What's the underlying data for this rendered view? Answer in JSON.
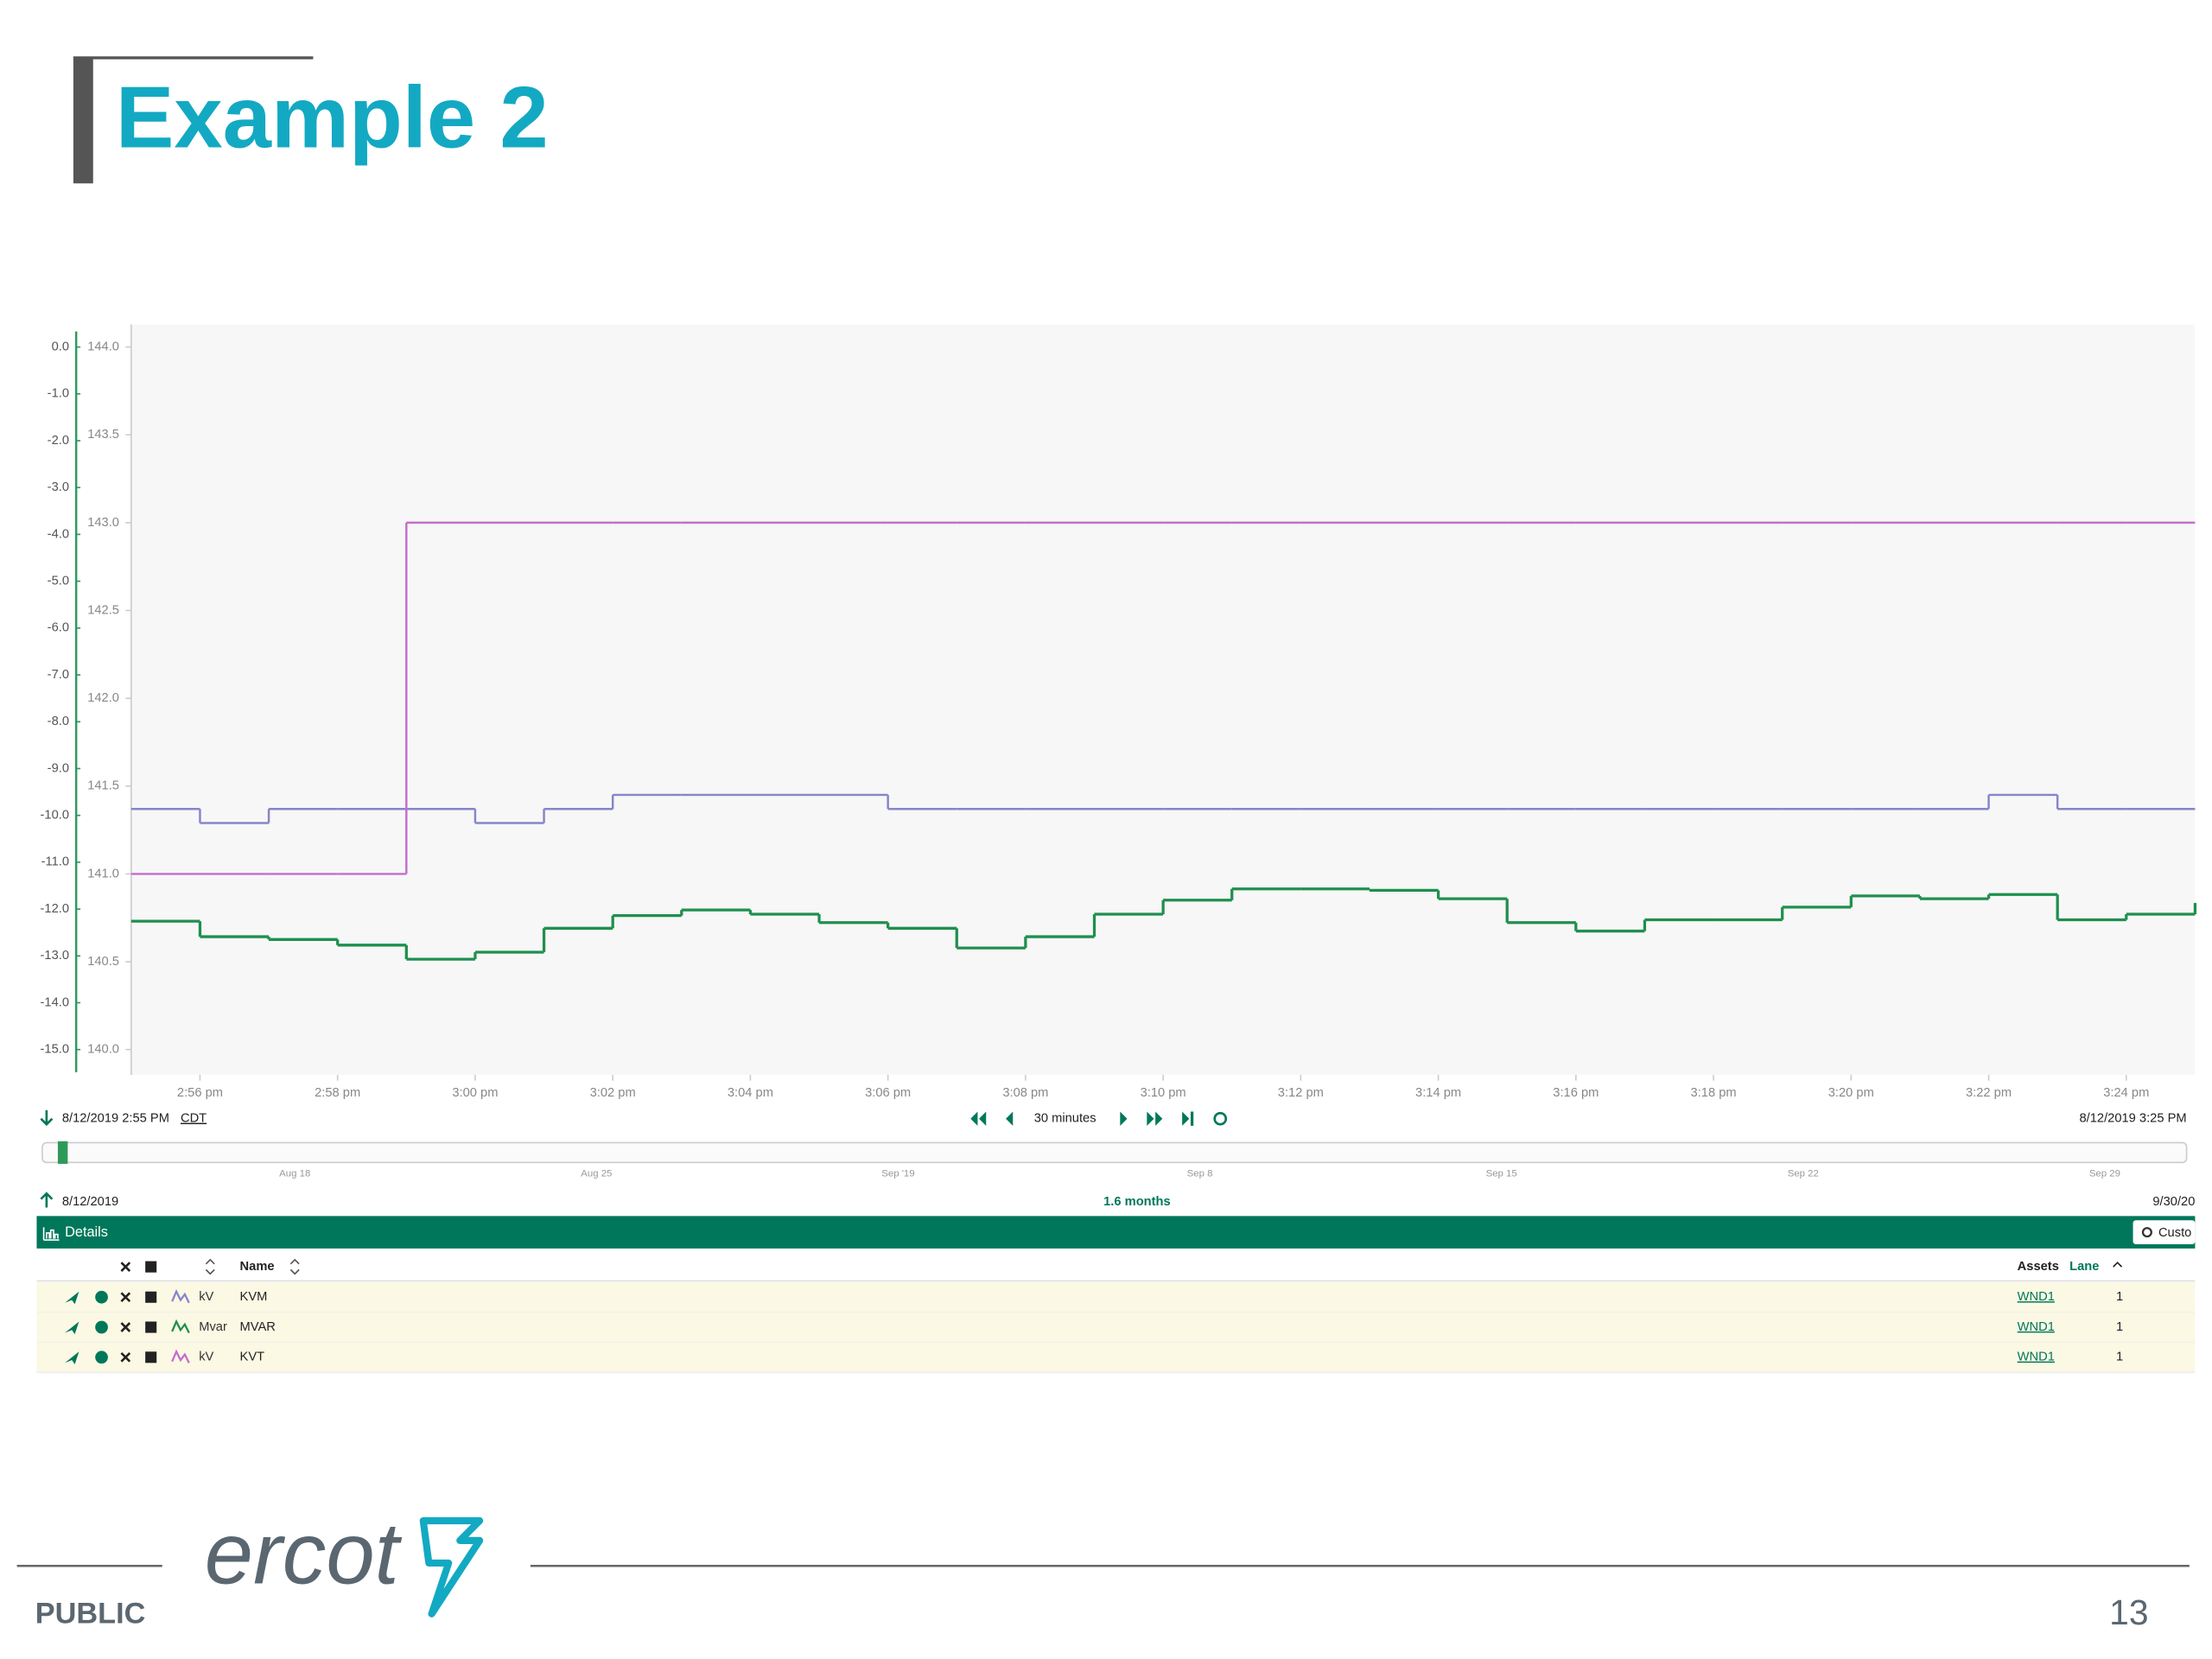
{
  "slide": {
    "title": "Example 2",
    "footer_label": "PUBLIC",
    "page_number": "13",
    "logo": "ercot"
  },
  "chart_data": {
    "type": "line",
    "step": true,
    "x": [
      "2:55 pm",
      "2:56 pm",
      "2:57 pm",
      "2:58 pm",
      "2:59 pm",
      "3:00 pm",
      "3:01 pm",
      "3:02 pm",
      "3:03 pm",
      "3:04 pm",
      "3:05 pm",
      "3:06 pm",
      "3:07 pm",
      "3:08 pm",
      "3:09 pm",
      "3:10 pm",
      "3:11 pm",
      "3:12 pm",
      "3:13 pm",
      "3:14 pm",
      "3:15 pm",
      "3:16 pm",
      "3:17 pm",
      "3:18 pm",
      "3:19 pm",
      "3:20 pm",
      "3:21 pm",
      "3:22 pm",
      "3:23 pm",
      "3:24 pm",
      "3:25 pm"
    ],
    "xlim": [
      "2:55 pm",
      "3:25 pm"
    ],
    "xticks": [
      "2:56 pm",
      "2:58 pm",
      "3:00 pm",
      "3:02 pm",
      "3:04 pm",
      "3:06 pm",
      "3:08 pm",
      "3:10 pm",
      "3:12 pm",
      "3:14 pm",
      "3:16 pm",
      "3:18 pm",
      "3:20 pm",
      "3:22 pm",
      "3:24 pm"
    ],
    "ylim": [
      140,
      144
    ],
    "yticks": [
      {
        "value": 140,
        "label": "140.0"
      },
      {
        "value": 140.5,
        "label": "140.5"
      },
      {
        "value": 141,
        "label": "141.0"
      },
      {
        "value": 141.5,
        "label": "141.5"
      },
      {
        "value": 142,
        "label": "142.0"
      },
      {
        "value": 142.5,
        "label": "142.5"
      },
      {
        "value": 143,
        "label": "143.0"
      },
      {
        "value": 143.5,
        "label": "143.5"
      },
      {
        "value": 144,
        "label": "144.0"
      }
    ],
    "y2lim": [
      -15,
      0
    ],
    "y2ticks": [
      {
        "value": 0,
        "label": "0.0"
      },
      {
        "value": -1,
        "label": "-1.0"
      },
      {
        "value": -2,
        "label": "-2.0"
      },
      {
        "value": -3,
        "label": "-3.0"
      },
      {
        "value": -4,
        "label": "-4.0"
      },
      {
        "value": -5,
        "label": "-5.0"
      },
      {
        "value": -6,
        "label": "-6.0"
      },
      {
        "value": -7,
        "label": "-7.0"
      },
      {
        "value": -8,
        "label": "-8.0"
      },
      {
        "value": -9,
        "label": "-9.0"
      },
      {
        "value": -10,
        "label": "-10.0"
      },
      {
        "value": -11,
        "label": "-11.0"
      },
      {
        "value": -12,
        "label": "-12.0"
      },
      {
        "value": -13,
        "label": "-13.0"
      },
      {
        "value": -14,
        "label": "-14.0"
      },
      {
        "value": -15,
        "label": "-15.0"
      }
    ],
    "series": [
      {
        "name": "KVM",
        "unit": "kV",
        "color": "#8585cc",
        "values": [
          141.37,
          141.29,
          141.37,
          141.37,
          141.37,
          141.29,
          141.37,
          141.45,
          141.45,
          141.45,
          141.45,
          141.37,
          141.37,
          141.37,
          141.37,
          141.37,
          141.37,
          141.37,
          141.37,
          141.37,
          141.37,
          141.37,
          141.37,
          141.37,
          141.37,
          141.37,
          141.37,
          141.45,
          141.37,
          141.37,
          141.37
        ]
      },
      {
        "name": "MVAR",
        "unit": "Mvar",
        "color": "#1f8f4e",
        "axis": "y2",
        "values": [
          -12.26,
          -12.59,
          -12.65,
          -12.77,
          -13.07,
          -12.92,
          -12.41,
          -12.14,
          -12.02,
          -12.11,
          -12.29,
          -12.41,
          -12.83,
          -12.59,
          -12.11,
          -11.81,
          -11.57,
          -11.57,
          -11.6,
          -11.78,
          -12.29,
          -12.47,
          -12.23,
          -12.23,
          -11.96,
          -11.72,
          -11.78,
          -11.69,
          -12.23,
          -12.11,
          -11.87
        ]
      },
      {
        "name": "KVT",
        "unit": "kV",
        "color": "#c46fcc",
        "values": [
          141,
          141,
          141,
          141,
          143,
          143,
          143,
          143,
          143,
          143,
          143,
          143,
          143,
          143,
          143,
          143,
          143,
          143,
          143,
          143,
          143,
          143,
          143,
          143,
          143,
          143,
          143,
          143,
          143,
          143,
          143
        ]
      }
    ]
  },
  "toolbar": {
    "start": "8/12/2019 2:55 PM",
    "timezone": "CDT",
    "window": "30 minutes",
    "end": "8/12/2019 3:25 PM"
  },
  "navigator": {
    "labels": [
      "Aug 18",
      "Aug 25",
      "Sep '19",
      "Sep 8",
      "Sep 15",
      "Sep 22",
      "Sep 29"
    ],
    "start": "8/12/2019",
    "span": "1.6 months",
    "end": "9/30/20"
  },
  "details": {
    "title": "Details",
    "button": "Custo",
    "headers": {
      "name": "Name",
      "assets": "Assets",
      "lane": "Lane"
    },
    "rows": [
      {
        "asset": "WND1",
        "lane": 1
      },
      {
        "asset": "WND1",
        "lane": 1
      },
      {
        "asset": "WND1",
        "lane": 1
      }
    ]
  }
}
